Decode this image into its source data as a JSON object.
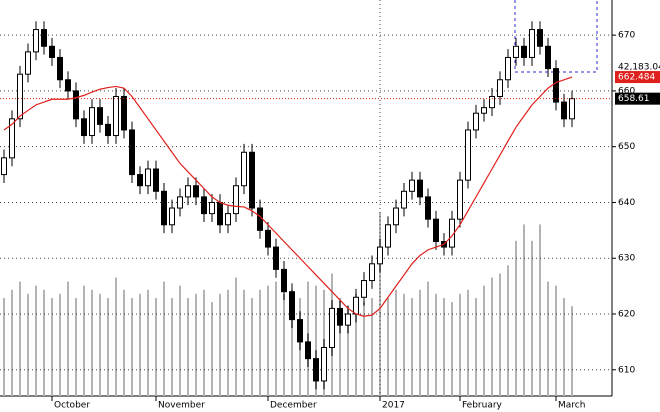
{
  "chart_data": {
    "type": "candlestick",
    "categories": [
      null,
      null,
      null,
      null,
      null,
      null,
      "October",
      null,
      null,
      null,
      null,
      null,
      null,
      null,
      null,
      null,
      null,
      null,
      null,
      "November",
      null,
      null,
      null,
      null,
      null,
      null,
      null,
      null,
      null,
      null,
      null,
      null,
      null,
      "December",
      null,
      null,
      null,
      null,
      null,
      null,
      null,
      null,
      null,
      null,
      null,
      null,
      null,
      "2017",
      null,
      null,
      null,
      null,
      null,
      null,
      null,
      null,
      null,
      "February",
      null,
      null,
      null,
      null,
      null,
      null,
      null,
      null,
      null,
      null,
      null,
      "March",
      null,
      null
    ],
    "open": [
      645,
      648,
      655,
      663,
      667,
      671,
      668,
      666,
      662,
      660,
      655,
      652,
      657,
      654,
      652,
      659,
      653,
      645,
      643,
      646,
      642,
      636,
      639,
      641,
      643,
      641,
      638,
      640,
      636,
      638,
      643,
      649,
      639,
      635,
      632,
      628,
      624,
      619,
      615,
      612,
      608,
      614,
      621,
      618,
      620,
      623,
      626,
      629,
      632,
      636,
      639,
      642,
      644,
      641,
      637,
      633,
      632,
      637,
      644,
      653,
      656,
      657,
      659,
      662,
      666,
      668,
      666,
      671,
      668,
      664,
      658,
      655
    ],
    "high": [
      649.5,
      656.5,
      664.5,
      668.5,
      672.5,
      672.5,
      669.5,
      667.5,
      663.5,
      661.5,
      656.5,
      658.5,
      658.5,
      655.5,
      660.5,
      660.5,
      654.5,
      646.5,
      647.5,
      647.5,
      643.5,
      640.5,
      642.5,
      644.5,
      644.5,
      642.5,
      641.5,
      641.5,
      639.5,
      644.5,
      650.5,
      650.5,
      640.5,
      636.5,
      633.5,
      629.5,
      625.5,
      620.5,
      616.5,
      613.5,
      615.5,
      622.5,
      622.5,
      621.5,
      624.5,
      627.5,
      630.5,
      633.5,
      637.5,
      640.5,
      643.5,
      645.5,
      645.5,
      642.5,
      638.5,
      634.5,
      638.5,
      645.5,
      654.5,
      657.5,
      658.5,
      660.5,
      663.5,
      667.5,
      669.5,
      669.5,
      672.5,
      672.5,
      669.5,
      665.5,
      659.5,
      660
    ],
    "low": [
      643.5,
      646.5,
      653.5,
      661.5,
      665.5,
      666.5,
      664.5,
      660.5,
      658.5,
      653.5,
      650.5,
      650.5,
      652.5,
      650.5,
      650.5,
      651.5,
      643.5,
      641.5,
      641.5,
      640.5,
      634.5,
      634.5,
      637.5,
      639.5,
      639.5,
      636.5,
      636.5,
      634.5,
      634.5,
      636.5,
      641.5,
      637.5,
      633.5,
      630.5,
      626.5,
      622.5,
      617.5,
      613.5,
      610.5,
      606.5,
      606.5,
      612.5,
      616.5,
      616.5,
      618.5,
      621.5,
      624.5,
      627.5,
      630.5,
      634.5,
      637.5,
      640.5,
      639.5,
      635.5,
      631.5,
      630.5,
      630.5,
      635.5,
      642.5,
      651.5,
      654.5,
      655.5,
      657.5,
      660.5,
      664.5,
      664.5,
      664.5,
      666.5,
      662.5,
      656.5,
      653.5,
      653.5
    ],
    "close": [
      648,
      655,
      663,
      667,
      671,
      668,
      666,
      662,
      660,
      655,
      652,
      657,
      654,
      652,
      659,
      653,
      645,
      643,
      646,
      642,
      636,
      639,
      641,
      643,
      641,
      638,
      640,
      636,
      638,
      643,
      649,
      639,
      635,
      632,
      628,
      624,
      619,
      615,
      612,
      608,
      614,
      621,
      618,
      620,
      623,
      626,
      629,
      632,
      636,
      639,
      642,
      644,
      641,
      637,
      633,
      632,
      637,
      644,
      653,
      656,
      657,
      659,
      662,
      666,
      668,
      666,
      671,
      668,
      664,
      658,
      655,
      658.61
    ],
    "volume": [
      12000,
      13000,
      14000,
      12500,
      13500,
      13000,
      12000,
      12500,
      14000,
      12000,
      13500,
      13000,
      12500,
      12000,
      14500,
      13000,
      12000,
      12500,
      13000,
      12000,
      14000,
      12000,
      13500,
      12000,
      12500,
      13000,
      11500,
      12500,
      13000,
      14500,
      13000,
      12000,
      13000,
      13500,
      14000,
      12500,
      13000,
      12000,
      14000,
      13500,
      13000,
      15000,
      12000,
      11000,
      12500,
      11500,
      12000,
      22500,
      12000,
      13000,
      12500,
      12000,
      13000,
      14000,
      12500,
      12000,
      11500,
      12500,
      13000,
      12000,
      13500,
      14500,
      15000,
      16000,
      19000,
      21000,
      19000,
      21000,
      14000,
      13500,
      12000,
      11000
    ],
    "volume_color": "#b3b3b3",
    "volume_lim": [
      0,
      30000
    ],
    "series": [
      {
        "color": "#e0201c",
        "values": [
          653,
          654,
          655.5,
          656.5,
          657.5,
          658,
          658.5,
          658.5,
          658.5,
          658.8,
          659.2,
          659.8,
          660.3,
          660.6,
          660.8,
          660.5,
          659,
          657,
          655,
          653,
          651,
          649,
          647,
          645.5,
          644,
          642.5,
          641,
          640,
          639.5,
          639.3,
          639.2,
          638.5,
          637.5,
          636,
          634.5,
          633,
          631.5,
          630,
          628.5,
          627,
          625.5,
          624,
          622.5,
          621,
          620,
          619.6,
          619.8,
          621,
          623,
          625,
          627,
          629,
          630.5,
          631.5,
          632,
          632.5,
          634,
          636,
          638.5,
          641,
          643.5,
          646,
          648.5,
          651,
          653.5,
          655.5,
          657.5,
          659,
          660.5,
          661.5,
          662,
          662.484
        ]
      }
    ],
    "annotation": "42,183.04",
    "ylim": [
      605.3,
      676.3
    ],
    "yticks": [
      610,
      620,
      630,
      640,
      650,
      660,
      670
    ],
    "grid": true
  }
}
